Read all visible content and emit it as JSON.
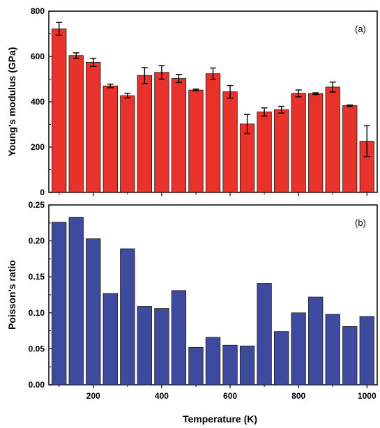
{
  "chart_data": [
    {
      "type": "bar",
      "panel_label": "(a)",
      "ylabel": "Young's modulus (GPa)",
      "xlabel": "",
      "x": [
        100,
        150,
        200,
        250,
        300,
        350,
        400,
        450,
        500,
        550,
        600,
        650,
        700,
        750,
        800,
        850,
        900,
        950,
        1000
      ],
      "values": [
        722,
        604,
        574,
        470,
        427,
        516,
        530,
        503,
        452,
        524,
        444,
        302,
        355,
        365,
        437,
        436,
        465,
        383,
        226
      ],
      "errors": [
        28,
        12,
        18,
        8,
        10,
        35,
        30,
        18,
        4,
        25,
        28,
        42,
        18,
        15,
        15,
        4,
        22,
        3,
        68
      ],
      "ylim": [
        0,
        800
      ],
      "yticks": [
        0,
        200,
        400,
        600,
        800
      ],
      "ytick_labels": [
        "0",
        "200",
        "400",
        "600",
        "800"
      ],
      "xlim": [
        70,
        1030
      ],
      "xticks": [
        200,
        400,
        600,
        800,
        1000
      ],
      "color": "#e8322b",
      "error_bars": true
    },
    {
      "type": "bar",
      "panel_label": "(b)",
      "ylabel": "Poisson's ratio",
      "xlabel": "Temperature (K)",
      "x": [
        100,
        150,
        200,
        250,
        300,
        350,
        400,
        450,
        500,
        550,
        600,
        650,
        700,
        750,
        800,
        850,
        900,
        950,
        1000
      ],
      "values": [
        0.226,
        0.233,
        0.203,
        0.127,
        0.189,
        0.109,
        0.106,
        0.131,
        0.052,
        0.066,
        0.055,
        0.054,
        0.141,
        0.074,
        0.1,
        0.122,
        0.098,
        0.081,
        0.095
      ],
      "ylim": [
        0,
        0.25
      ],
      "yticks": [
        0,
        0.05,
        0.1,
        0.15,
        0.2,
        0.25
      ],
      "ytick_labels": [
        "0.00",
        "0.05",
        "0.10",
        "0.15",
        "0.20",
        "0.25"
      ],
      "xlim": [
        70,
        1030
      ],
      "xticks": [
        200,
        400,
        600,
        800,
        1000
      ],
      "xtick_labels": [
        "200",
        "400",
        "600",
        "800",
        "1000"
      ],
      "color": "#3d4a9e"
    }
  ]
}
